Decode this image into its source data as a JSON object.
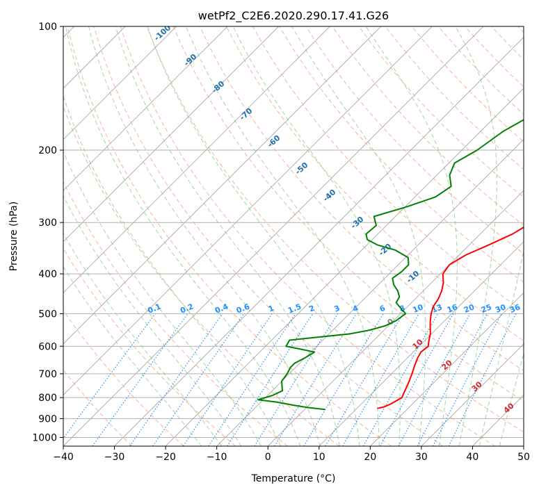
{
  "chart_data": {
    "type": "line",
    "title": "wetPf2_C2E6.2020.290.17.41.G26",
    "xlabel": "Temperature (°C)",
    "ylabel": "Pressure (hPa)",
    "xlim": [
      -40,
      50
    ],
    "ylim": [
      1050,
      100
    ],
    "y_scale": "log",
    "x_ticks": [
      -40,
      -30,
      -20,
      -10,
      0,
      10,
      20,
      30,
      40,
      50
    ],
    "y_ticks": [
      100,
      200,
      300,
      400,
      500,
      600,
      700,
      800,
      900,
      1000
    ],
    "grid": true,
    "series": [
      {
        "color": "#ff0000",
        "pressure": [
          850,
          843,
          828,
          800,
          780,
          740,
          700,
          665,
          640,
          620,
          600,
          585,
          560,
          540,
          520,
          500,
          480,
          460,
          440,
          420,
          400,
          380,
          360,
          340,
          320,
          300,
          280,
          260,
          240,
          220,
          200,
          180,
          160,
          140,
          130,
          120,
          110,
          100
        ],
        "values": [
          14,
          15,
          15.8,
          16.7,
          16.2,
          15.2,
          14,
          12.8,
          12,
          11.5,
          11.8,
          11,
          9.8,
          8.5,
          7.2,
          6,
          5,
          4.5,
          3.6,
          2.3,
          0.5,
          0,
          1.3,
          3.8,
          6.3,
          7.8,
          8.6,
          9.2,
          9.9,
          10.3,
          10.5,
          10.8,
          11.3,
          12,
          12.8,
          14.4,
          16.2,
          18
        ]
      },
      {
        "color": "#008000",
        "pressure": [
          855,
          845,
          835,
          820,
          810,
          790,
          770,
          750,
          730,
          700,
          675,
          660,
          640,
          620,
          610,
          600,
          580,
          570,
          560,
          548,
          535,
          520,
          500,
          485,
          470,
          455,
          440,
          425,
          410,
          395,
          380,
          365,
          350,
          340,
          330,
          320,
          305,
          290,
          275,
          260,
          245,
          230,
          215,
          200,
          180,
          160,
          140,
          125,
          115,
          108,
          100
        ],
        "values": [
          4,
          0,
          -3,
          -7,
          -11,
          -9,
          -8,
          -9,
          -10,
          -10.4,
          -11,
          -11,
          -10,
          -9.3,
          -12.5,
          -16,
          -16.5,
          -11.5,
          -6,
          -2.8,
          -0.6,
          0.5,
          1,
          -1,
          -3,
          -3.5,
          -5,
          -7,
          -8.5,
          -8,
          -8,
          -9.5,
          -13.5,
          -18,
          -21,
          -22.3,
          -22,
          -24.2,
          -19.8,
          -16,
          -15,
          -17.5,
          -18.9,
          -17,
          -15.6,
          -12.4,
          -7.2,
          -3.3,
          -3,
          -4.2,
          1.3
        ]
      }
    ],
    "dry_adiabat_labels": [
      "-100",
      "-90",
      "-80",
      "-70",
      "-60",
      "-50",
      "-40",
      "-30",
      "-20",
      "-10"
    ],
    "mixing_ratio_labels": [
      "0.1",
      "0.2",
      "0.4",
      "0.6",
      "1",
      "1.5",
      "2",
      "3",
      "4",
      "6",
      "8",
      "10",
      "13",
      "16",
      "20",
      "25",
      "30",
      "36"
    ],
    "moist_adiabat_labels": [
      "0",
      "10",
      "20",
      "30",
      "40"
    ]
  }
}
